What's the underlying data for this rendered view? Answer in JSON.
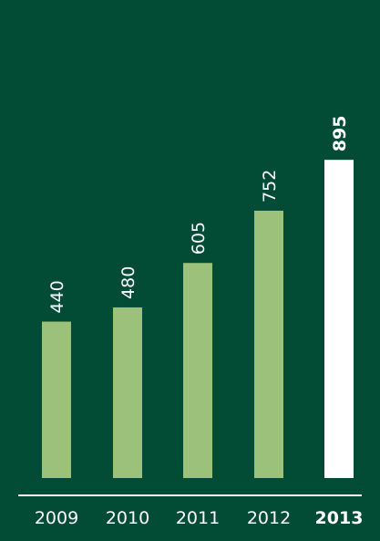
{
  "chart_data": {
    "type": "bar",
    "categories": [
      "2009",
      "2010",
      "2011",
      "2012",
      "2013"
    ],
    "values": [
      440,
      480,
      605,
      752,
      895
    ],
    "highlight_index": 4,
    "title": "",
    "xlabel": "",
    "ylabel": "",
    "ylim": [
      0,
      1000
    ],
    "grid": false,
    "legend": "none"
  },
  "colors": {
    "background": "#024c35",
    "bar": "#9bc17a",
    "highlight_bar": "#ffffff",
    "text": "#ffffff",
    "axis_line": "#ffffff"
  }
}
